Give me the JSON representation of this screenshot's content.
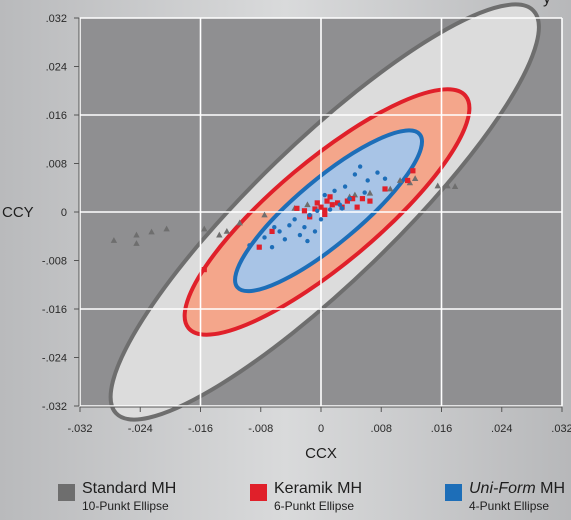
{
  "corner_text": "y",
  "colors": {
    "standard": "#6e6e6e",
    "standard_fill": "#dcdcdc",
    "keramik": "#e0202a",
    "keramik_fill": "#f4a68b",
    "uniform": "#1d6eb8",
    "uniform_fill": "#a8c4e6",
    "plot_bg": "#8f8f91"
  },
  "chart_data": {
    "type": "scatter",
    "xlabel": "CCX",
    "ylabel": "CCY",
    "xlim": [
      -0.032,
      0.032
    ],
    "ylim": [
      -0.032,
      0.032
    ],
    "grid": true,
    "x_ticks": [
      -0.032,
      -0.024,
      -0.016,
      -0.008,
      0,
      0.008,
      0.016,
      0.024,
      0.032
    ],
    "y_ticks": [
      0.032,
      0.024,
      0.016,
      0.008,
      0,
      -0.008,
      -0.016,
      -0.024,
      -0.032
    ],
    "x_tick_labels": [
      "-.032",
      "-.024",
      "-.016",
      "-.008",
      "0",
      ".008",
      ".016",
      ".024",
      ".032"
    ],
    "y_tick_labels": [
      ".032",
      ".024",
      ".016",
      ".008",
      "0",
      "-.008",
      "-.016",
      "-.024",
      "-.032"
    ],
    "legend_position": "bottom",
    "series": [
      {
        "name": "Standard MH",
        "subtitle": "10-Punkt Ellipse",
        "marker": "triangle",
        "ellipse": {
          "cx": 0.0005,
          "cy": 0.0,
          "rx": 0.0385,
          "ry": 0.0115,
          "angle_deg": 44
        },
        "points": [
          [
            -0.0275,
            -0.0047
          ],
          [
            -0.0245,
            -0.0038
          ],
          [
            -0.0225,
            -0.0033
          ],
          [
            -0.0205,
            -0.0028
          ],
          [
            -0.0155,
            -0.0028
          ],
          [
            -0.0135,
            -0.0038
          ],
          [
            -0.0108,
            -0.0018
          ],
          [
            -0.0075,
            -0.0005
          ],
          [
            -0.0035,
            0.0006
          ],
          [
            -0.0018,
            0.0012
          ],
          [
            0.0038,
            0.0025
          ],
          [
            0.0045,
            0.0028
          ],
          [
            0.0065,
            0.0031
          ],
          [
            0.0092,
            0.0038
          ],
          [
            0.0105,
            0.0052
          ],
          [
            0.0118,
            0.0048
          ],
          [
            0.0125,
            0.0055
          ],
          [
            0.0155,
            0.0043
          ],
          [
            0.0168,
            0.0043
          ],
          [
            0.0178,
            0.0042
          ],
          [
            -0.0245,
            -0.0052
          ],
          [
            -0.0125,
            -0.0032
          ]
        ]
      },
      {
        "name": "Keramik MH",
        "subtitle": "6-Punkt Ellipse",
        "marker": "square",
        "ellipse": {
          "cx": 0.0008,
          "cy": 0.0,
          "rx": 0.024,
          "ry": 0.0085,
          "angle_deg": 40
        },
        "points": [
          [
            -0.0155,
            -0.0095
          ],
          [
            -0.0082,
            -0.0058
          ],
          [
            -0.0065,
            -0.0032
          ],
          [
            -0.0032,
            0.0006
          ],
          [
            -0.0022,
            0.0002
          ],
          [
            -0.0015,
            -0.0008
          ],
          [
            -0.0008,
            0.0005
          ],
          [
            -0.0005,
            0.0015
          ],
          [
            0.0,
            0.0008
          ],
          [
            0.0005,
            0.0003
          ],
          [
            0.0008,
            0.0018
          ],
          [
            0.0012,
            0.0025
          ],
          [
            0.0015,
            0.0012
          ],
          [
            0.0022,
            0.0015
          ],
          [
            0.0028,
            0.0008
          ],
          [
            0.0035,
            0.0018
          ],
          [
            0.0042,
            0.0022
          ],
          [
            0.0048,
            0.0008
          ],
          [
            0.0055,
            0.0022
          ],
          [
            0.0065,
            0.0018
          ],
          [
            0.0085,
            0.0038
          ],
          [
            0.0115,
            0.0052
          ],
          [
            0.0122,
            0.0068
          ],
          [
            0.0005,
            -0.0004
          ]
        ]
      },
      {
        "name": "Uni-Form MH",
        "subtitle": "4-Punkt Ellipse",
        "marker": "circle",
        "ellipse": {
          "cx": 0.001,
          "cy": 0.0002,
          "rx": 0.0158,
          "ry": 0.0053,
          "angle_deg": 40
        },
        "points": [
          [
            -0.0095,
            -0.0055
          ],
          [
            -0.0075,
            -0.0042
          ],
          [
            -0.0062,
            -0.0025
          ],
          [
            -0.0055,
            -0.0032
          ],
          [
            -0.0048,
            -0.0045
          ],
          [
            -0.0042,
            -0.0022
          ],
          [
            -0.0035,
            -0.0012
          ],
          [
            -0.0028,
            -0.0038
          ],
          [
            -0.0022,
            -0.0025
          ],
          [
            -0.0015,
            -0.0005
          ],
          [
            -0.0008,
            -0.0032
          ],
          [
            -0.0005,
            0.0002
          ],
          [
            0.0,
            -0.0012
          ],
          [
            0.0005,
            0.0028
          ],
          [
            0.0012,
            0.0004
          ],
          [
            0.0018,
            0.0035
          ],
          [
            0.0025,
            0.0012
          ],
          [
            0.0032,
            0.0042
          ],
          [
            0.0038,
            0.0022
          ],
          [
            0.0045,
            0.0062
          ],
          [
            0.0052,
            0.0075
          ],
          [
            0.0062,
            0.0052
          ],
          [
            0.0075,
            0.0065
          ],
          [
            0.0085,
            0.0055
          ],
          [
            -0.0065,
            -0.0058
          ],
          [
            -0.0018,
            -0.0048
          ],
          [
            0.0028,
            0.0006
          ],
          [
            0.0058,
            0.0032
          ]
        ]
      }
    ]
  },
  "legend": [
    {
      "title_plain": "Standard MH",
      "title_italic": "",
      "subtitle": "10-Punkt Ellipse",
      "swatch": "#6e6e6e"
    },
    {
      "title_plain": "Keramik MH",
      "title_italic": "",
      "subtitle": "6-Punkt Ellipse",
      "swatch": "#e0202a"
    },
    {
      "title_plain": " MH",
      "title_italic": "Uni-Form",
      "subtitle": "4-Punkt Ellipse",
      "swatch": "#1d6eb8"
    }
  ]
}
